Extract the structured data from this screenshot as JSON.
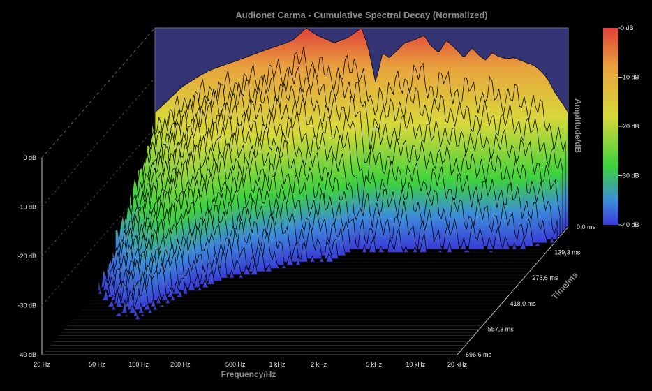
{
  "chart_data": {
    "type": "waterfall",
    "title": "Audionet Carma - Cumulative Spectral Decay (Normalized)",
    "xlabel": "Frequency/Hz",
    "ylabel": "Amplitude/dB",
    "zlabel": "Time/ms",
    "x_scale": "log",
    "xlim": [
      20,
      20000
    ],
    "ylim": [
      -40,
      0
    ],
    "x_ticks": [
      "20 Hz",
      "50 Hz",
      "100 Hz",
      "200 Hz",
      "500 Hz",
      "1 kHz",
      "2 kHz",
      "5 kHz",
      "10 kHz",
      "20 kHz"
    ],
    "x_tick_values": [
      20,
      50,
      100,
      200,
      500,
      1000,
      2000,
      5000,
      10000,
      20000
    ],
    "y_ticks": [
      "0 dB",
      "-10 dB",
      "-20 dB",
      "-30 dB",
      "-40 dB"
    ],
    "y_tick_values": [
      0,
      -10,
      -20,
      -30,
      -40
    ],
    "z_ticks": [
      "0,0 ms",
      "139,3 ms",
      "278,6 ms",
      "418,0 ms",
      "557,3 ms",
      "696,6 ms"
    ],
    "z_tick_values": [
      0,
      139.3,
      278.6,
      418.0,
      557.3,
      696.6
    ],
    "colorbar": {
      "ticks": [
        "0 dB",
        "-10 dB",
        "-20 dB",
        "-30 dB",
        "-40 dB"
      ],
      "colors": [
        "#e0413a",
        "#e8a33e",
        "#d8d83a",
        "#3dd23d",
        "#3c8cd9",
        "#3a3ad8"
      ]
    },
    "background": "#000000",
    "surface_edge_color": "#0a0a0a",
    "time_slices": 40,
    "initial_spectrum": {
      "freq_hz": [
        20,
        25,
        31,
        40,
        50,
        63,
        80,
        100,
        125,
        160,
        200,
        250,
        300,
        400,
        500,
        630,
        700,
        800,
        900,
        1000,
        1100,
        1300,
        1500,
        1800,
        2000,
        2300,
        2600,
        3000,
        3500,
        4000,
        4500,
        5000,
        5600,
        6300,
        7100,
        8000,
        9000,
        10000,
        11200,
        12500,
        14000,
        16000,
        18000,
        20000
      ],
      "amplitude_db": [
        -17,
        -14.5,
        -12,
        -10,
        -8.5,
        -7.5,
        -6.5,
        -5.5,
        -4.5,
        -3.5,
        -2.5,
        0,
        -1.5,
        -3,
        -2,
        0,
        -3.5,
        -11,
        -5,
        -6,
        -5,
        -3,
        -2.5,
        -1.5,
        -3.5,
        -5,
        -2.5,
        -4,
        -6,
        -4,
        -5.5,
        -6.5,
        -5,
        -5.8,
        -6.2,
        -6,
        -6.5,
        -7,
        -7.5,
        -8.5,
        -10,
        -13,
        -15,
        -17
      ]
    }
  }
}
